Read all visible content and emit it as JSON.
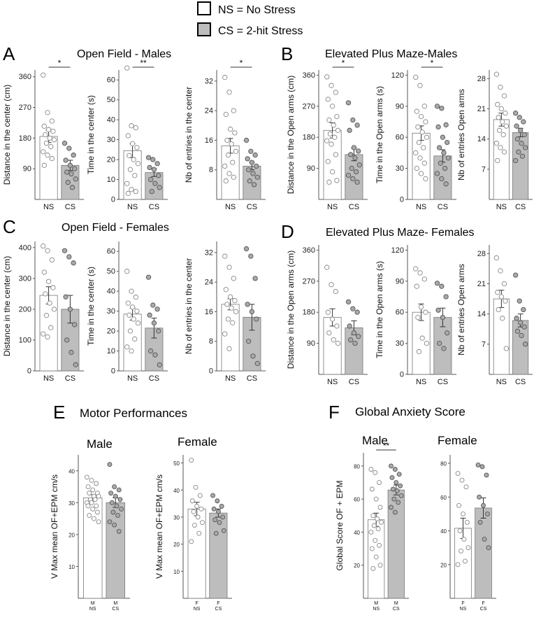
{
  "legend": {
    "ns_label": "NS = No Stress",
    "cs_label": "CS = 2-hit Stress",
    "ns_fill": "#ffffff",
    "cs_fill": "#bdbdbd"
  },
  "panels": {
    "A": {
      "letter": "A",
      "title": "Open Field - Males"
    },
    "B": {
      "letter": "B",
      "title": "Elevated Plus Maze-Males"
    },
    "C": {
      "letter": "C",
      "title": "Open Field - Females"
    },
    "D": {
      "letter": "D",
      "title": "Elevated Plus Maze- Females"
    },
    "E": {
      "letter": "E",
      "title": "Motor Performances",
      "sub_male": "Male",
      "sub_female": "Female"
    },
    "F": {
      "letter": "F",
      "title": "Global Anxiety Score",
      "sub_male": "Male",
      "sub_female": "Female"
    }
  },
  "chart_data": [
    {
      "id": "A1",
      "type": "bar",
      "ylabel": "Distance in the center (cm)",
      "ylim": [
        0,
        380
      ],
      "ticks": [
        90,
        180,
        270,
        360
      ],
      "categories": [
        "NS",
        "CS"
      ],
      "means": [
        185,
        100
      ],
      "sems": [
        18,
        15
      ],
      "sig": "*",
      "points": [
        [
          365,
          255,
          230,
          215,
          205,
          200,
          190,
          180,
          175,
          165,
          155,
          140,
          130,
          120,
          100
        ],
        [
          165,
          150,
          130,
          115,
          100,
          90,
          80,
          75,
          60,
          50,
          35
        ]
      ]
    },
    {
      "id": "A2",
      "type": "bar",
      "ylabel": "Time in the center (s)",
      "ylim": [
        0,
        65
      ],
      "ticks": [
        0,
        10,
        20,
        30,
        40,
        50,
        60
      ],
      "categories": [
        "NS",
        "CS"
      ],
      "means": [
        24.5,
        13.5
      ],
      "sems": [
        3.5,
        2
      ],
      "sig": "**",
      "points": [
        [
          66,
          37,
          36,
          32,
          28,
          26,
          22,
          20,
          18,
          15,
          12,
          8,
          5,
          4,
          3
        ],
        [
          21,
          20,
          18,
          16,
          15,
          12,
          10,
          8,
          6,
          4
        ]
      ]
    },
    {
      "id": "A3",
      "type": "bar",
      "ylabel": "Nb of entries in the center",
      "ylim": [
        0,
        35
      ],
      "ticks": [
        8,
        16,
        24,
        32
      ],
      "categories": [
        "NS",
        "CS"
      ],
      "means": [
        14.5,
        9
      ],
      "sems": [
        2,
        1
      ],
      "sig": "*",
      "points": [
        [
          33,
          29,
          24,
          23,
          19,
          18,
          16,
          15,
          13,
          12,
          10,
          9,
          7,
          6,
          5
        ],
        [
          16,
          13,
          12,
          11,
          10,
          9,
          8,
          7,
          6,
          5,
          4
        ]
      ]
    },
    {
      "id": "B1",
      "type": "bar",
      "ylabel": "Distance in the Open arms (cm)",
      "ylim": [
        0,
        375
      ],
      "ticks": [
        90,
        180,
        270,
        360
      ],
      "categories": [
        "NS",
        "CS"
      ],
      "means": [
        200,
        130
      ],
      "sems": [
        22,
        18
      ],
      "sig": "*",
      "points": [
        [
          355,
          330,
          310,
          290,
          270,
          240,
          230,
          215,
          200,
          190,
          180,
          170,
          160,
          130,
          110,
          80,
          55,
          50
        ],
        [
          280,
          230,
          215,
          200,
          150,
          140,
          130,
          120,
          100,
          90,
          80,
          70,
          60,
          50
        ]
      ]
    },
    {
      "id": "B2",
      "type": "bar",
      "ylabel": "Time in the Open arms (s)",
      "ylim": [
        0,
        125
      ],
      "ticks": [
        0,
        30,
        60,
        90,
        120
      ],
      "categories": [
        "NS",
        "CS"
      ],
      "means": [
        64,
        42
      ],
      "sems": [
        7,
        6
      ],
      "sig": "*",
      "points": [
        [
          118,
          110,
          90,
          85,
          80,
          75,
          70,
          65,
          60,
          55,
          50,
          45,
          40,
          35,
          30,
          25,
          20
        ],
        [
          90,
          88,
          72,
          70,
          60,
          55,
          50,
          45,
          40,
          35,
          30,
          25,
          20,
          15
        ]
      ]
    },
    {
      "id": "B3",
      "type": "bar",
      "ylabel": "Nb of entries Open arms",
      "ylim": [
        0,
        30
      ],
      "ticks": [
        7,
        14,
        21,
        28
      ],
      "categories": [
        "NS",
        "CS"
      ],
      "means": [
        18.5,
        15.5
      ],
      "sems": [
        1.5,
        1
      ],
      "sig": "",
      "points": [
        [
          29,
          26,
          24,
          22,
          21,
          20,
          19,
          18,
          17,
          16,
          15,
          13,
          12,
          11,
          9
        ],
        [
          20,
          19,
          18,
          17,
          16,
          15,
          14,
          13,
          12,
          11,
          10,
          9
        ]
      ]
    },
    {
      "id": "C1",
      "type": "bar",
      "ylabel": "Distance in the center (cm)",
      "ylim": [
        0,
        420
      ],
      "ticks": [
        0,
        100,
        200,
        300,
        400
      ],
      "categories": [
        "NS",
        "CS"
      ],
      "means": [
        245,
        200
      ],
      "sems": [
        28,
        45
      ],
      "sig": "",
      "points": [
        [
          405,
          390,
          360,
          320,
          290,
          270,
          250,
          220,
          200,
          180,
          140,
          120,
          110
        ],
        [
          390,
          370,
          350,
          240,
          200,
          150,
          100,
          60,
          20
        ]
      ]
    },
    {
      "id": "C2",
      "type": "bar",
      "ylabel": "Time in the center (s)",
      "ylim": [
        0,
        65
      ],
      "ticks": [
        0,
        10,
        20,
        30,
        40,
        50,
        60
      ],
      "categories": [
        "NS",
        "CS"
      ],
      "means": [
        28.5,
        21.5
      ],
      "sems": [
        3,
        5
      ],
      "sig": "",
      "points": [
        [
          50,
          40,
          37,
          34,
          32,
          30,
          28,
          26,
          24,
          20,
          16,
          12,
          10
        ],
        [
          47,
          33,
          31,
          28,
          24,
          20,
          10,
          8,
          3
        ]
      ]
    },
    {
      "id": "C3",
      "type": "bar",
      "ylabel": "Nb of entries in the center",
      "ylim": [
        0,
        35
      ],
      "ticks": [
        0,
        8,
        16,
        24,
        32
      ],
      "categories": [
        "NS",
        "CS"
      ],
      "means": [
        18,
        14.5
      ],
      "sems": [
        1.5,
        3.5
      ],
      "sig": "",
      "points": [
        [
          31,
          28,
          25,
          22,
          20,
          19,
          18,
          17,
          16,
          14,
          13,
          10,
          6
        ],
        [
          33,
          31,
          25,
          18,
          16,
          14,
          8,
          4,
          2
        ]
      ]
    },
    {
      "id": "D1",
      "type": "bar",
      "ylabel": "Distance in the Open arms (cm)",
      "ylim": [
        0,
        375
      ],
      "ticks": [
        90,
        180,
        270,
        360
      ],
      "categories": [
        "NS",
        "CS"
      ],
      "means": [
        165,
        135
      ],
      "sems": [
        25,
        20
      ],
      "sig": "",
      "points": [
        [
          310,
          260,
          240,
          180,
          160,
          140,
          120,
          100,
          90
        ],
        [
          210,
          190,
          180,
          140,
          120,
          110,
          100,
          90
        ]
      ]
    },
    {
      "id": "D2",
      "type": "bar",
      "ylabel": "Time in the Open arms (s)",
      "ylim": [
        0,
        125
      ],
      "ticks": [
        0,
        30,
        60,
        90,
        120
      ],
      "categories": [
        "NS",
        "CS"
      ],
      "means": [
        60,
        55
      ],
      "sems": [
        8,
        9
      ],
      "sig": "",
      "points": [
        [
          102,
          98,
          92,
          85,
          65,
          60,
          55,
          35,
          30,
          22
        ],
        [
          88,
          85,
          75,
          62,
          55,
          40,
          30,
          25
        ]
      ]
    },
    {
      "id": "D3",
      "type": "bar",
      "ylabel": "Nb of entries Open arms",
      "ylim": [
        0,
        30
      ],
      "ticks": [
        7,
        14,
        21,
        28
      ],
      "categories": [
        "NS",
        "CS"
      ],
      "means": [
        17.5,
        12.5
      ],
      "sems": [
        2,
        1.5
      ],
      "sig": "",
      "points": [
        [
          27,
          24,
          21,
          19,
          18,
          17,
          15,
          13,
          6
        ],
        [
          23,
          17,
          15,
          13,
          12,
          11,
          10,
          9,
          7
        ]
      ]
    },
    {
      "id": "E1",
      "type": "bar",
      "ylabel": "V Max mean OF+EPM cm/s",
      "ylim": [
        0,
        45
      ],
      "ticks": [
        10,
        20,
        30,
        40
      ],
      "categories": [
        "M\nNS",
        "M\nCS"
      ],
      "means": [
        31.5,
        30
      ],
      "sems": [
        1,
        1.5
      ],
      "sig": "",
      "points": [
        [
          38,
          37,
          36,
          35,
          34,
          33,
          33,
          32,
          32,
          31,
          31,
          30,
          30,
          29,
          29,
          28,
          27,
          26,
          25,
          24
        ],
        [
          42,
          35,
          34,
          33,
          32,
          31,
          30,
          29,
          28,
          27,
          26,
          24,
          23,
          21
        ]
      ]
    },
    {
      "id": "E2",
      "type": "bar",
      "ylabel": "V Max mean OF+EPM cm/s",
      "ylim": [
        0,
        53
      ],
      "ticks": [
        10,
        20,
        30,
        40,
        50
      ],
      "categories": [
        "F\nNS",
        "F\nCS"
      ],
      "means": [
        33,
        31.5
      ],
      "sems": [
        2.5,
        1.5
      ],
      "sig": "",
      "points": [
        [
          51,
          41,
          38,
          36,
          34,
          33,
          32,
          30,
          28,
          27,
          24,
          21
        ],
        [
          38,
          36,
          34,
          33,
          32,
          30,
          29,
          28,
          25,
          24
        ]
      ]
    },
    {
      "id": "F1",
      "type": "bar",
      "ylabel": "Global Score OF + EPM",
      "ylim": [
        0,
        88
      ],
      "ticks": [
        20,
        40,
        60,
        80
      ],
      "categories": [
        "M\nNS",
        "M\nCS"
      ],
      "means": [
        47.5,
        65.5
      ],
      "sems": [
        4,
        3
      ],
      "sig": "**",
      "points": [
        [
          78,
          76,
          70,
          66,
          60,
          55,
          50,
          48,
          46,
          44,
          42,
          40,
          35,
          32,
          30,
          25,
          20,
          18
        ],
        [
          80,
          78,
          75,
          73,
          70,
          68,
          66,
          65,
          62,
          60,
          58,
          55,
          52
        ]
      ]
    },
    {
      "id": "F2",
      "type": "bar",
      "ylabel": "",
      "ylim": [
        0,
        85
      ],
      "ticks": [
        20,
        40,
        60,
        80
      ],
      "categories": [
        "F\nNS",
        "F\nCS"
      ],
      "means": [
        41.5,
        53.5
      ],
      "sems": [
        6,
        6
      ],
      "sig": "",
      "points": [
        [
          74,
          70,
          66,
          55,
          50,
          45,
          40,
          35,
          30,
          28,
          22,
          20
        ],
        [
          79,
          78,
          73,
          60,
          55,
          50,
          45,
          35,
          30
        ]
      ]
    }
  ]
}
